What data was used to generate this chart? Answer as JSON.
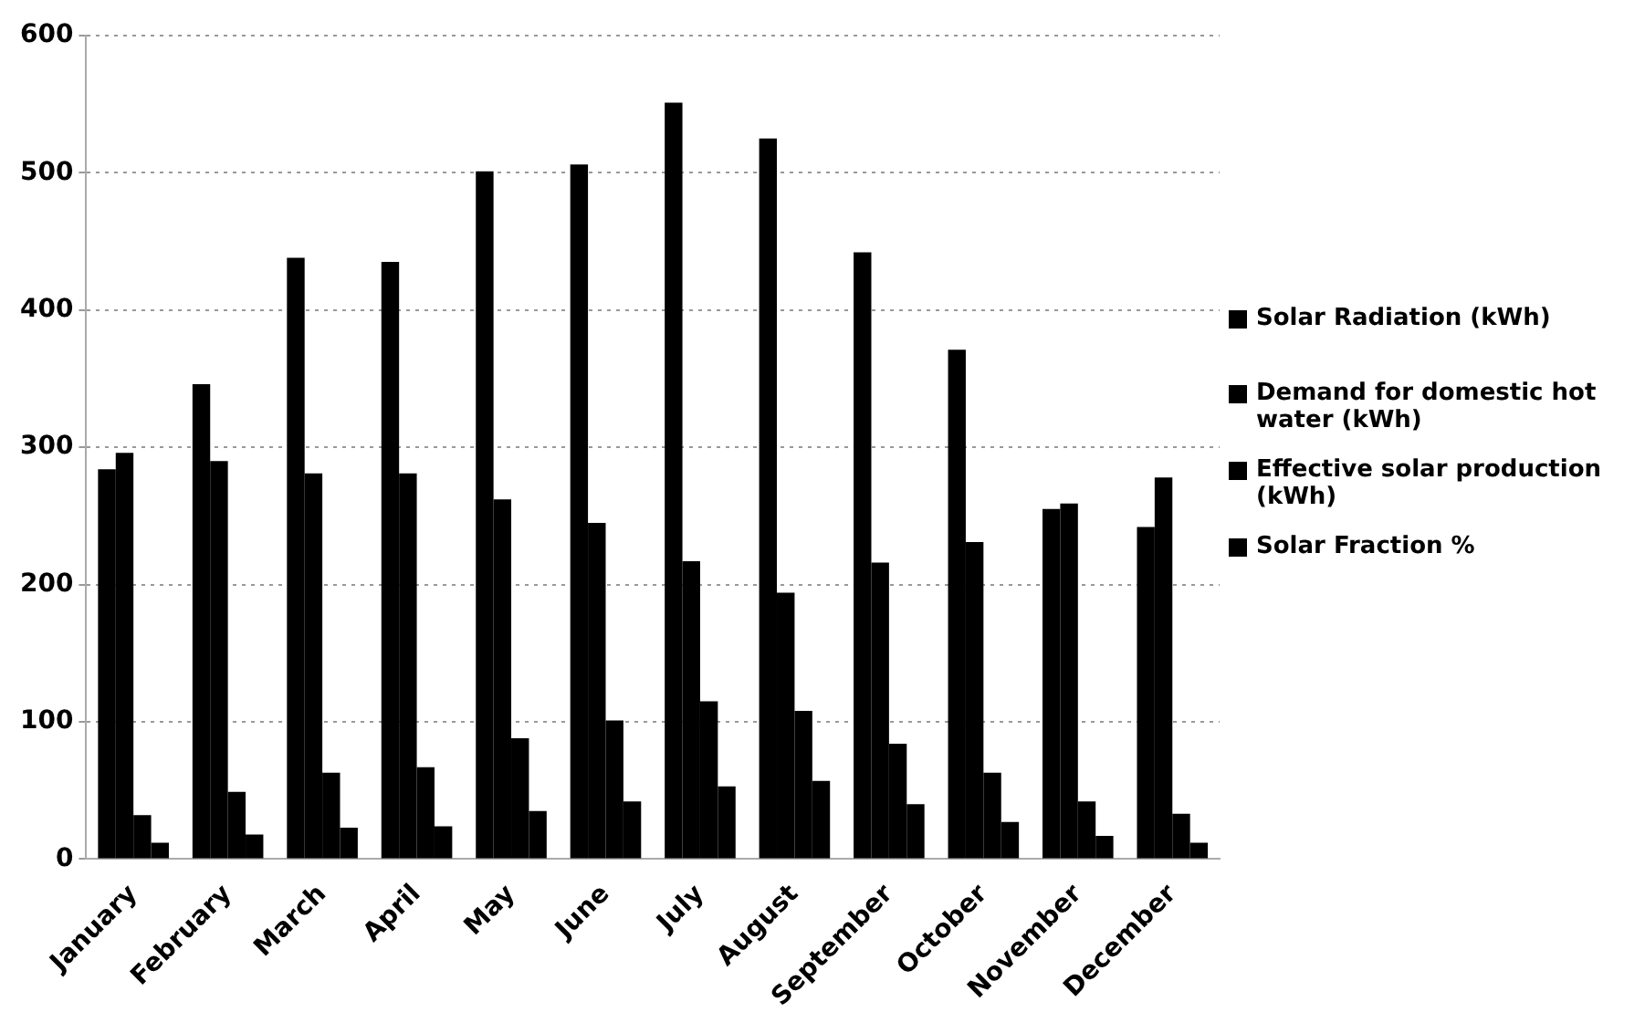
{
  "chart_data": {
    "type": "bar",
    "categories": [
      "January",
      "February",
      "March",
      "April",
      "May",
      "June",
      "July",
      "August",
      "September",
      "October",
      "November",
      "December"
    ],
    "series": [
      {
        "name": "Solar Radiation (kWh)",
        "color": "#000000",
        "values": [
          284,
          346,
          438,
          435,
          501,
          506,
          551,
          525,
          442,
          371,
          255,
          242
        ]
      },
      {
        "name": "Demand for domestic hot water (kWh)",
        "color": "#000000",
        "values": [
          296,
          290,
          281,
          281,
          262,
          245,
          217,
          194,
          216,
          231,
          259,
          278
        ]
      },
      {
        "name": "Effective solar production  (kWh)",
        "color": "#000000",
        "values": [
          32,
          49,
          63,
          67,
          88,
          101,
          115,
          108,
          84,
          63,
          42,
          33
        ]
      },
      {
        "name": "Solar Fraction %",
        "color": "#000000",
        "values": [
          12,
          18,
          23,
          24,
          35,
          42,
          53,
          57,
          40,
          27,
          17,
          12
        ]
      }
    ],
    "ylim": [
      0,
      600
    ],
    "yticks": [
      0,
      100,
      200,
      300,
      400,
      500,
      600
    ],
    "grid": "y",
    "legend": "right"
  }
}
